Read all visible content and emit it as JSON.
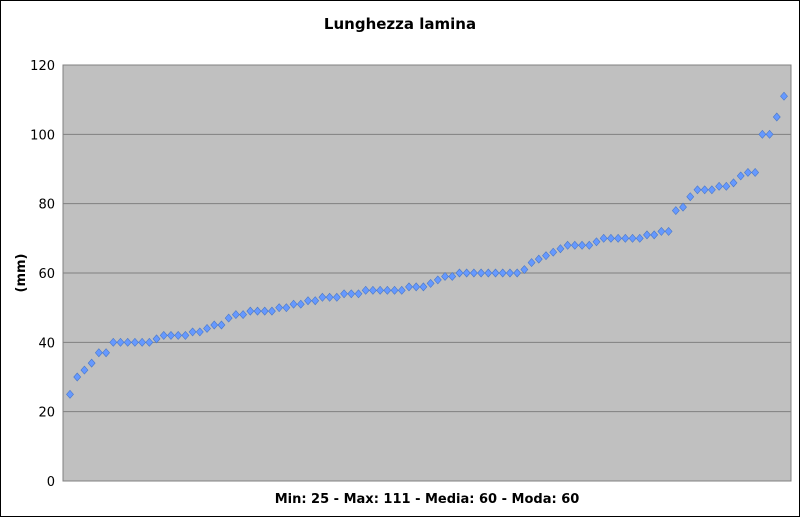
{
  "chart_data": {
    "type": "scatter",
    "title": "Lunghezza lamina",
    "xlabel": "Min: 25 - Max: 111 - Media: 60 - Moda: 60",
    "ylabel": "(mm)",
    "ylim": [
      0,
      120
    ],
    "yticks": [
      "0",
      "20",
      "40",
      "60",
      "80",
      "100",
      "120"
    ],
    "grid": true,
    "plot_background": "#c0c0c0",
    "marker_color": "#6699ff",
    "series": [
      {
        "values": [
          25,
          30,
          32,
          34,
          37,
          37,
          40,
          40,
          40,
          40,
          40,
          40,
          41,
          42,
          42,
          42,
          42,
          43,
          43,
          44,
          45,
          45,
          47,
          48,
          48,
          49,
          49,
          49,
          49,
          50,
          50,
          51,
          51,
          52,
          52,
          53,
          53,
          53,
          54,
          54,
          54,
          55,
          55,
          55,
          55,
          55,
          55,
          56,
          56,
          56,
          57,
          58,
          59,
          59,
          60,
          60,
          60,
          60,
          60,
          60,
          60,
          60,
          60,
          61,
          63,
          64,
          65,
          66,
          67,
          68,
          68,
          68,
          68,
          69,
          70,
          70,
          70,
          70,
          70,
          70,
          71,
          71,
          72,
          72,
          78,
          79,
          82,
          84,
          84,
          84,
          85,
          85,
          86,
          88,
          89,
          89,
          100,
          100,
          105,
          111
        ]
      }
    ]
  }
}
